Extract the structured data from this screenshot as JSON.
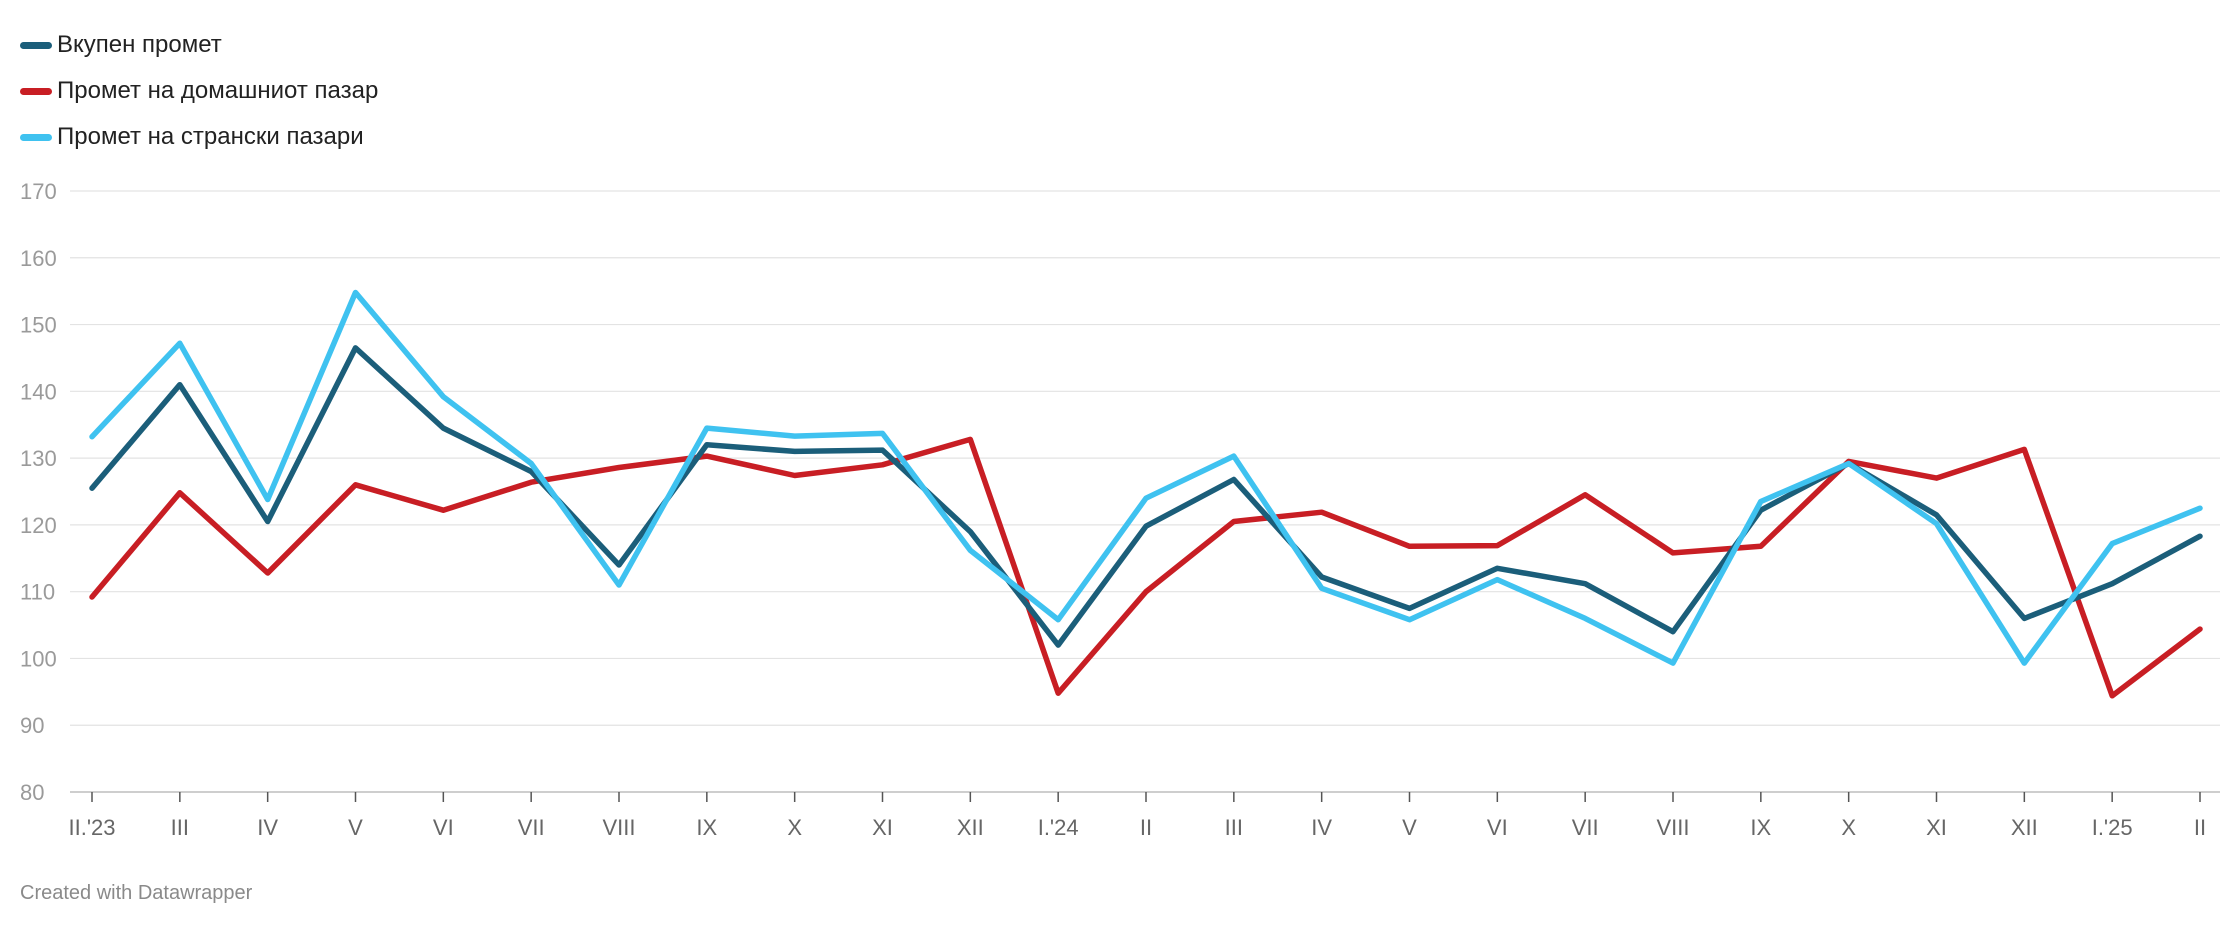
{
  "legend": [
    {
      "label": "Вкупен промет",
      "color": "#1b5e7a"
    },
    {
      "label": "Промет на домашниот пазар",
      "color": "#c81e24"
    },
    {
      "label": "Промет на странски пазари",
      "color": "#3fc2f0"
    }
  ],
  "footer": {
    "text": "Created with Datawrapper"
  },
  "chart_data": {
    "type": "line",
    "title": "",
    "xlabel": "",
    "ylabel": "",
    "ylim": [
      80,
      170
    ],
    "yticks": [
      80,
      90,
      100,
      110,
      120,
      130,
      140,
      150,
      160,
      170
    ],
    "grid": true,
    "legend_position": "top-left",
    "categories": [
      "II.'23",
      "III",
      "IV",
      "V",
      "VI",
      "VII",
      "VIII",
      "IX",
      "X",
      "XI",
      "XII",
      "I.'24",
      "II",
      "III",
      "IV",
      "V",
      "VI",
      "VII",
      "VIII",
      "IX",
      "X",
      "XI",
      "XII",
      "I.'25",
      "II"
    ],
    "series": [
      {
        "name": "Вкупен промет",
        "color": "#1b5e7a",
        "values": [
          125.5,
          141,
          120.5,
          146.5,
          134.5,
          128,
          114,
          132,
          131,
          131.2,
          119,
          102,
          119.8,
          126.8,
          112.2,
          107.5,
          113.5,
          111.2,
          104,
          122.2,
          129.2,
          121.5,
          106,
          111.2,
          118.3
        ]
      },
      {
        "name": "Промет на домашниот пазар",
        "color": "#c81e24",
        "values": [
          109.2,
          124.8,
          112.8,
          126,
          122.2,
          126.4,
          128.6,
          130.3,
          127.4,
          129,
          132.8,
          94.8,
          110,
          120.5,
          121.9,
          116.8,
          116.9,
          124.5,
          115.8,
          116.8,
          129.5,
          127,
          131.3,
          94.4,
          104.4
        ]
      },
      {
        "name": "Промет на странски пазари",
        "color": "#3fc2f0",
        "values": [
          133.2,
          147.2,
          123.8,
          154.8,
          139.2,
          129.2,
          111,
          134.5,
          133.3,
          133.7,
          116.2,
          105.8,
          124,
          130.3,
          110.5,
          105.8,
          111.8,
          106,
          99.3,
          123.5,
          129.2,
          120.2,
          99.3,
          117.2,
          122.5
        ]
      }
    ]
  }
}
